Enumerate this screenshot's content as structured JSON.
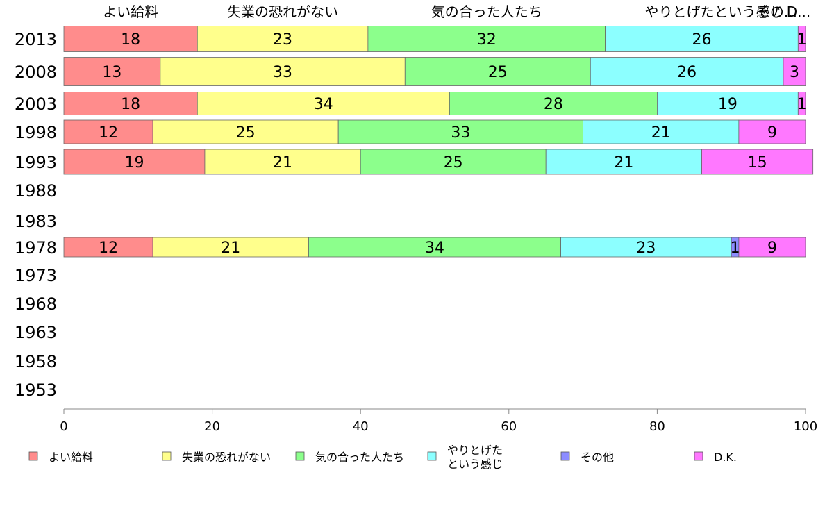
{
  "chart_data": {
    "type": "bar",
    "orientation": "horizontal",
    "stacked": true,
    "categories": [
      "2013",
      "2008",
      "2003",
      "1998",
      "1993",
      "1988",
      "1983",
      "1978",
      "1973",
      "1968",
      "1963",
      "1958",
      "1953"
    ],
    "series": [
      {
        "name": "よい給料",
        "color": "#ff8c8c",
        "values": [
          18,
          13,
          18,
          12,
          19,
          null,
          null,
          12,
          null,
          null,
          null,
          null,
          null
        ]
      },
      {
        "name": "失業の恐れがない",
        "color": "#ffff8c",
        "values": [
          23,
          33,
          34,
          25,
          21,
          null,
          null,
          21,
          null,
          null,
          null,
          null,
          null
        ]
      },
      {
        "name": "気の合った人たち",
        "color": "#8cff8c",
        "values": [
          32,
          25,
          28,
          33,
          25,
          null,
          null,
          34,
          null,
          null,
          null,
          null,
          null
        ]
      },
      {
        "name": "やりとげたという感じ",
        "legend_lines": [
          "やりとげた",
          "という感じ"
        ],
        "color": "#8cffff",
        "values": [
          26,
          26,
          19,
          21,
          21,
          null,
          null,
          23,
          null,
          null,
          null,
          null,
          null
        ]
      },
      {
        "name": "その他",
        "color": "#8c8cff",
        "values": [
          0,
          0,
          0,
          0,
          0,
          null,
          null,
          1,
          null,
          null,
          null,
          null,
          null
        ]
      },
      {
        "name": "D.K.",
        "color": "#ff78ff",
        "values": [
          1,
          3,
          1,
          9,
          15,
          null,
          null,
          9,
          null,
          null,
          null,
          null,
          null
        ]
      }
    ],
    "top_labels": [
      "よい給料",
      "失業の恐れがない",
      "気の合った人たち",
      "やりとげたという感じ",
      "その...",
      "D..."
    ],
    "xlim": [
      0,
      100
    ],
    "xticks": [
      0,
      20,
      40,
      60,
      80,
      100
    ],
    "grid": false,
    "legend_position": "bottom"
  }
}
